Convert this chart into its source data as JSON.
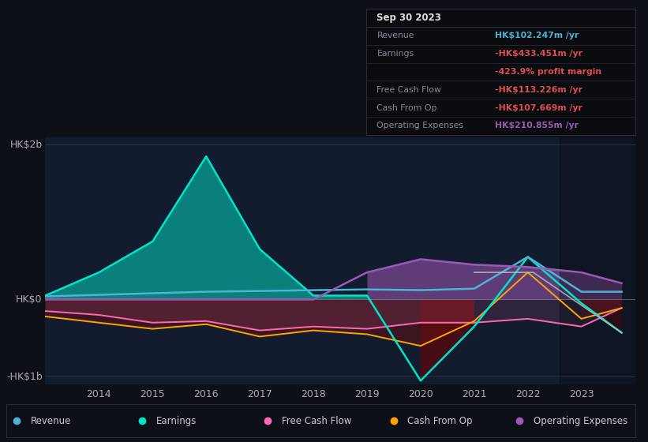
{
  "background_color": "#0d1117",
  "chart_bg": "#131b2e",
  "years": [
    2013,
    2014,
    2015,
    2016,
    2017,
    2018,
    2019,
    2020,
    2021,
    2022,
    2023,
    2023.75
  ],
  "revenue": [
    0.04,
    0.06,
    0.08,
    0.1,
    0.11,
    0.12,
    0.13,
    0.12,
    0.14,
    0.55,
    0.1,
    0.1
  ],
  "earnings": [
    0.05,
    0.35,
    0.75,
    1.85,
    0.65,
    0.05,
    0.05,
    -1.05,
    -0.35,
    0.55,
    -0.05,
    -0.43
  ],
  "free_cash_flow": [
    -0.15,
    -0.2,
    -0.3,
    -0.28,
    -0.4,
    -0.35,
    -0.38,
    -0.3,
    -0.3,
    -0.25,
    -0.35,
    -0.11
  ],
  "cash_from_op": [
    -0.22,
    -0.3,
    -0.38,
    -0.32,
    -0.48,
    -0.4,
    -0.45,
    -0.6,
    -0.28,
    0.35,
    -0.25,
    -0.11
  ],
  "operating_expenses": [
    0.0,
    0.0,
    0.0,
    0.0,
    0.0,
    0.0,
    0.35,
    0.52,
    0.45,
    0.42,
    0.35,
    0.21
  ],
  "revenue_color": "#4eb3d3",
  "earnings_color": "#00e5c8",
  "free_cash_flow_color": "#ff69b4",
  "cash_from_op_color": "#ffa500",
  "operating_expenses_color": "#9b59b6",
  "ylim": [
    -1.1,
    2.1
  ],
  "xtick_years": [
    2014,
    2015,
    2016,
    2017,
    2018,
    2019,
    2020,
    2021,
    2022,
    2023
  ],
  "info_box": {
    "date": "Sep 30 2023",
    "revenue_val": "HK$102.247m",
    "revenue_color": "#4eb3d3",
    "earnings_val": "-HK$433.451m",
    "earnings_color": "#e05050",
    "earnings_margin": "-423.9%",
    "earnings_margin_color": "#e05050",
    "fcf_val": "-HK$113.226m",
    "fcf_color": "#e05050",
    "cashop_val": "-HK$107.669m",
    "cashop_color": "#e05050",
    "opex_val": "HK$210.855m",
    "opex_color": "#9b59b6"
  },
  "legend_items": [
    {
      "label": "Revenue",
      "color": "#4eb3d3"
    },
    {
      "label": "Earnings",
      "color": "#00e5c8"
    },
    {
      "label": "Free Cash Flow",
      "color": "#ff69b4"
    },
    {
      "label": "Cash From Op",
      "color": "#ffa500"
    },
    {
      "label": "Operating Expenses",
      "color": "#9b59b6"
    }
  ]
}
